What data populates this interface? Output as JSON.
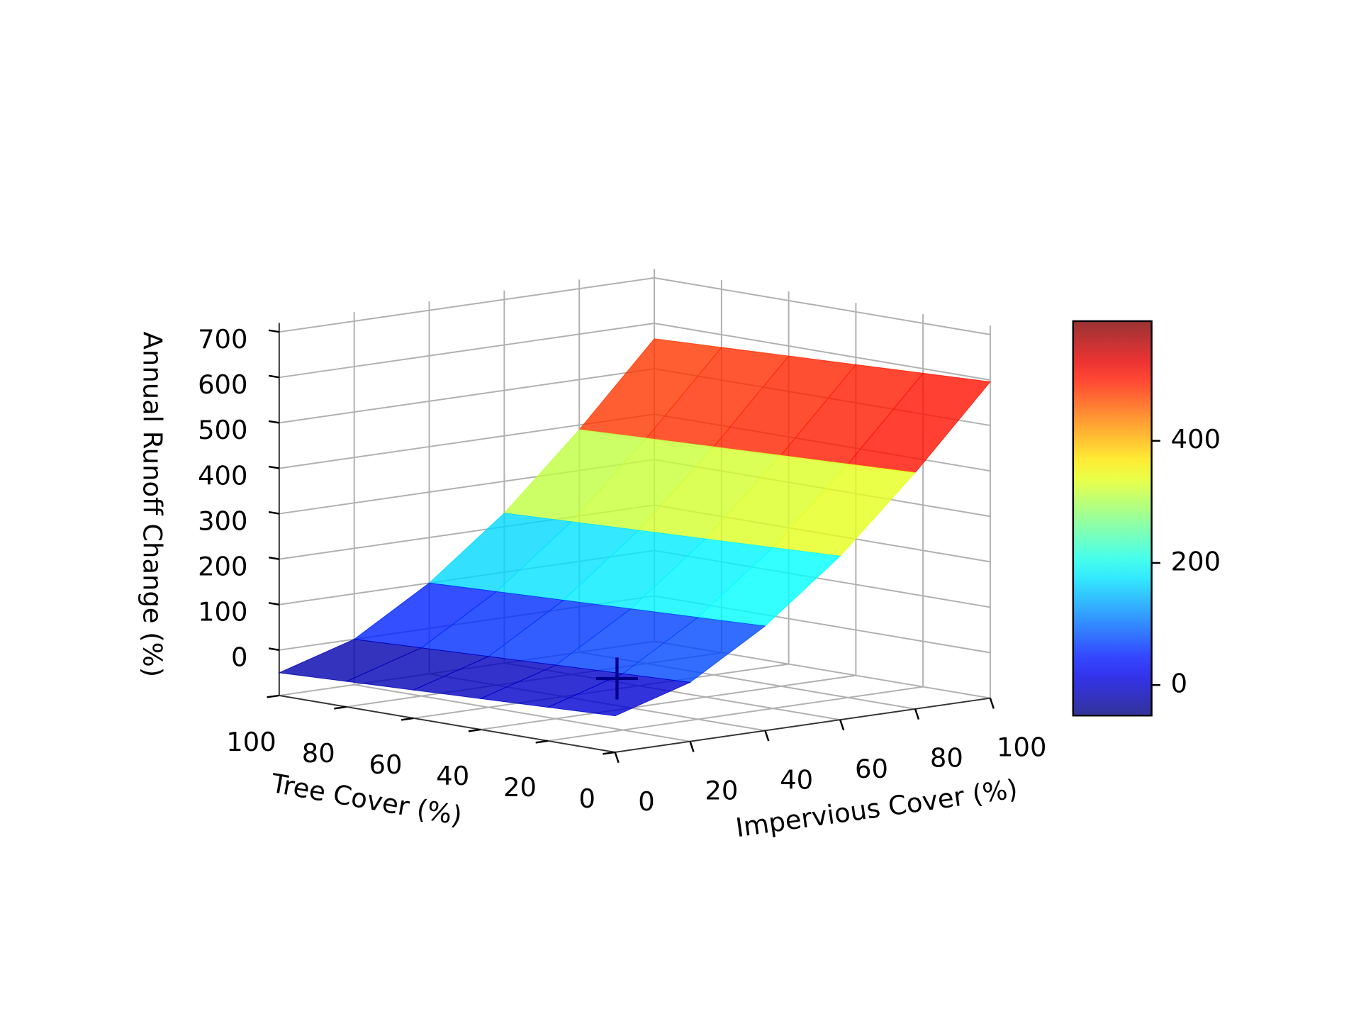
{
  "chart_data": {
    "type": "surface",
    "xlabel": "Impervious Cover (%)",
    "ylabel": "Tree Cover (%)",
    "zlabel": "Annual Runoff Change (%)",
    "x": [
      0,
      20,
      40,
      60,
      80,
      100
    ],
    "y": [
      0,
      20,
      40,
      60,
      80,
      100
    ],
    "z": [
      [
        -20,
        30,
        130,
        260,
        420,
        596
      ],
      [
        -26,
        24,
        124,
        254,
        414,
        590
      ],
      [
        -32,
        18,
        118,
        248,
        408,
        584
      ],
      [
        -38,
        12,
        112,
        242,
        402,
        578
      ],
      [
        -44,
        6,
        106,
        236,
        396,
        572
      ],
      [
        -50,
        0,
        100,
        230,
        390,
        566
      ]
    ],
    "colormap": "jet",
    "alpha": 0.8,
    "xlim": [
      0,
      100
    ],
    "ylim": [
      0,
      100
    ],
    "zlim": [
      -100,
      720
    ],
    "xticks": [
      0,
      20,
      40,
      60,
      80,
      100
    ],
    "yticks": [
      0,
      20,
      40,
      60,
      80,
      100
    ],
    "zticks": [
      0,
      100,
      200,
      300,
      400,
      500,
      600,
      700
    ],
    "clim": [
      -50,
      596
    ],
    "colorbar_ticks": [
      0,
      200,
      400
    ],
    "marker": {
      "x": 5,
      "y": 5,
      "z": 50,
      "color": "#00008b"
    },
    "grid": true
  }
}
